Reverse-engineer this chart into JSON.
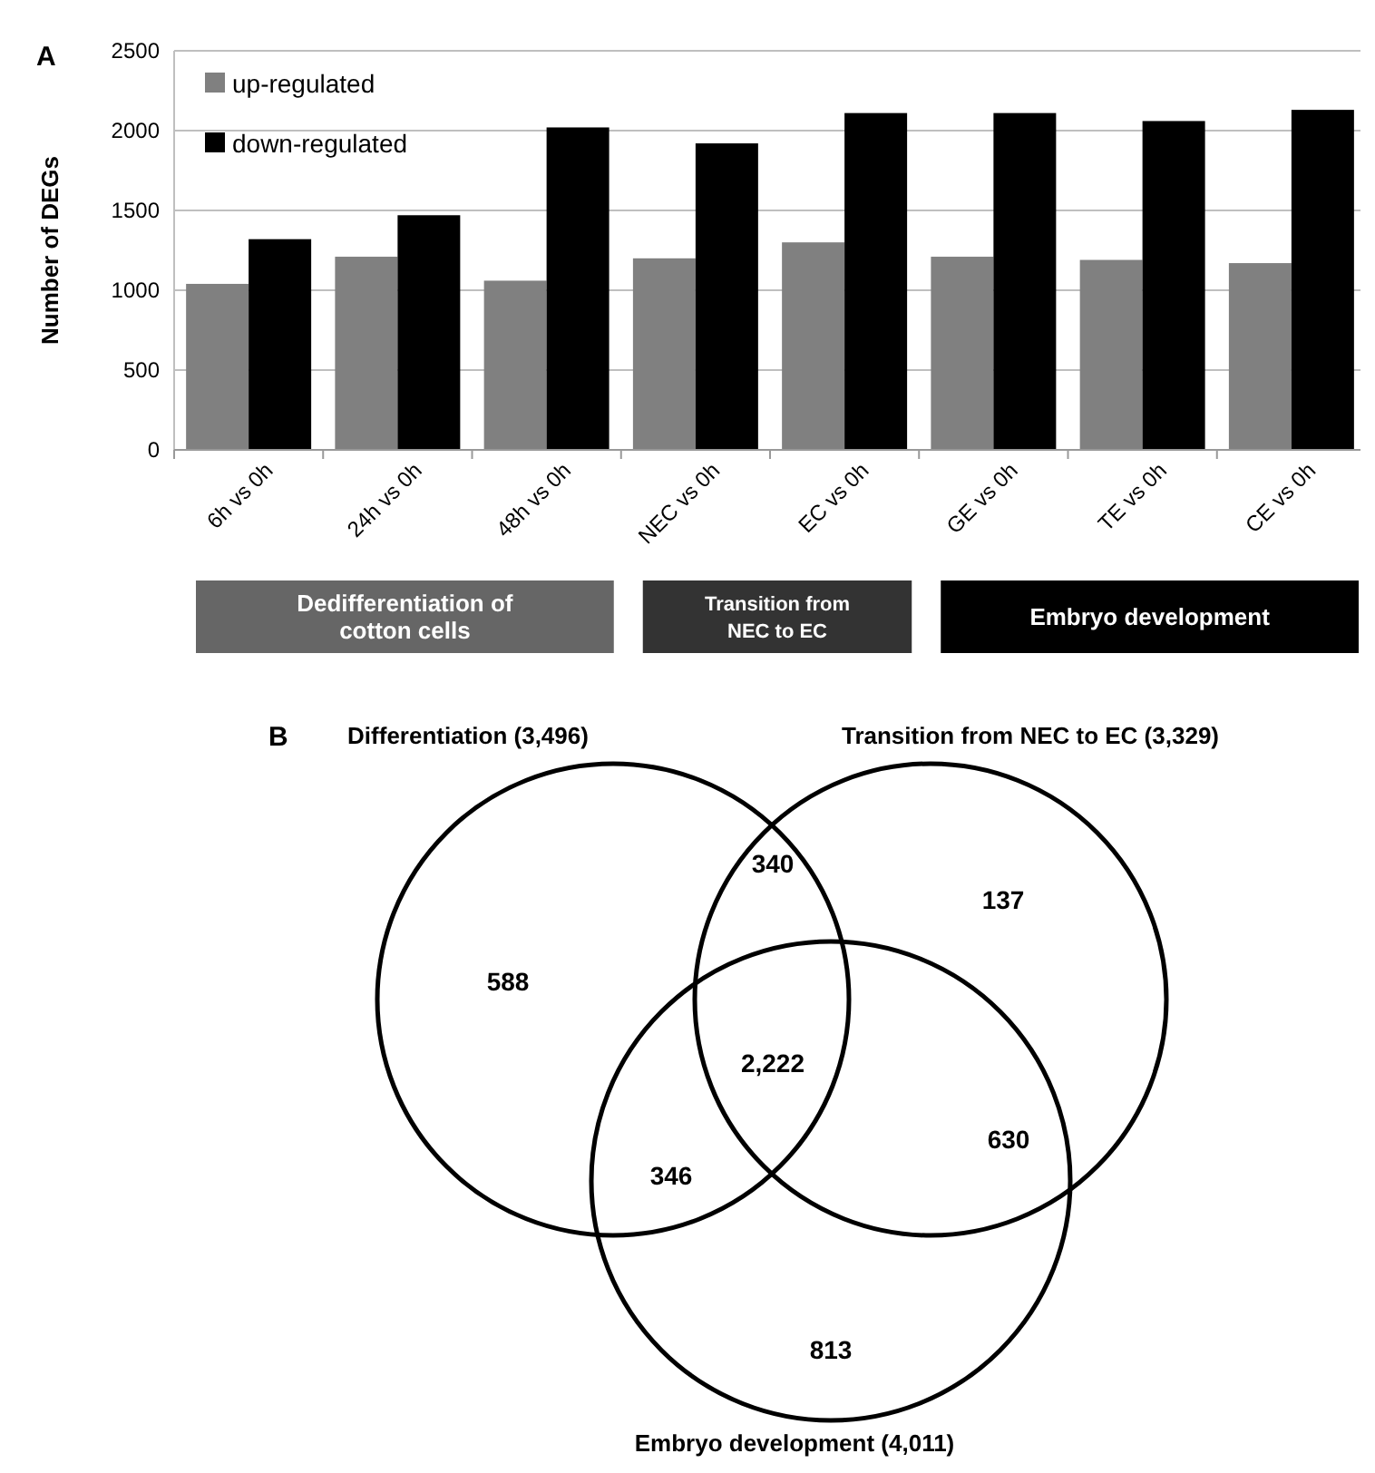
{
  "chart_data": [
    {
      "type": "bar",
      "ylabel": "Number of DEGs",
      "categories": [
        "6h vs 0h",
        "24h vs 0h",
        "48h vs 0h",
        "NEC vs 0h",
        "EC vs 0h",
        "GE vs 0h",
        "TE vs 0h",
        "CE  vs 0h"
      ],
      "series": [
        {
          "name": "up-regulated",
          "color": "#808080",
          "values": [
            1040,
            1210,
            1060,
            1200,
            1300,
            1210,
            1190,
            1170
          ]
        },
        {
          "name": "down-regulated",
          "color": "#000000",
          "values": [
            1320,
            1470,
            2020,
            1920,
            2110,
            2110,
            2060,
            2130
          ]
        }
      ],
      "ylim": [
        0,
        2500
      ],
      "yticks": [
        0,
        500,
        1000,
        1500,
        2000,
        2500
      ],
      "grid": "y",
      "legend": "top left",
      "annotations": [
        "A",
        "Dedifferentiation of cotton cells",
        "Transition from NEC to EC",
        "Embryo development"
      ]
    },
    {
      "type": "other",
      "categories": [
        "Differentiation (3,496)",
        "Transition from NEC to EC (3,329)",
        "Embryo development (4,011)"
      ],
      "annotations": [
        "B",
        "588",
        "340",
        "137",
        "2,222",
        "346",
        "630",
        "813"
      ]
    }
  ]
}
